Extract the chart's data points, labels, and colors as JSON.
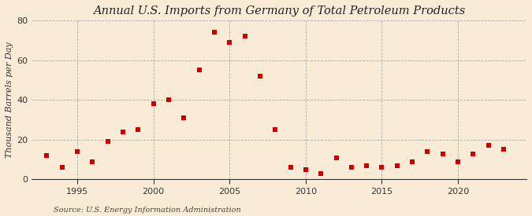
{
  "title": "Annual U.S. Imports from Germany of Total Petroleum Products",
  "ylabel": "Thousand Barrels per Day",
  "source": "Source: U.S. Energy Information Administration",
  "background_color": "#faebd7",
  "plot_bg_color": "#faebd7",
  "marker_color": "#cc0000",
  "years": [
    1993,
    1994,
    1995,
    1996,
    1997,
    1998,
    1999,
    2000,
    2001,
    2002,
    2003,
    2004,
    2005,
    2006,
    2007,
    2008,
    2009,
    2010,
    2011,
    2012,
    2013,
    2014,
    2015,
    2016,
    2017,
    2018,
    2019,
    2020,
    2021,
    2022,
    2023
  ],
  "values": [
    12,
    6,
    14,
    9,
    19,
    24,
    25,
    38,
    40,
    31,
    55,
    74,
    69,
    72,
    52,
    25,
    6,
    5,
    3,
    11,
    6,
    7,
    6,
    7,
    9,
    14,
    13,
    9,
    13,
    17,
    15
  ],
  "ylim": [
    0,
    80
  ],
  "yticks": [
    0,
    20,
    40,
    60,
    80
  ],
  "xticks": [
    1995,
    2000,
    2005,
    2010,
    2015,
    2020
  ],
  "xlim": [
    1992,
    2024.5
  ],
  "title_fontsize": 10.5,
  "label_fontsize": 8,
  "tick_fontsize": 8,
  "source_fontsize": 7
}
